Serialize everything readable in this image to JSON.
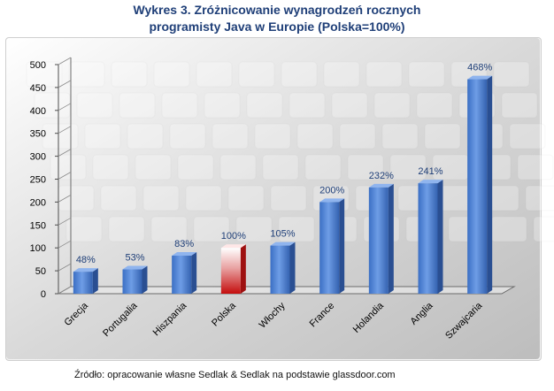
{
  "title_line1": "Wykres 3. Zróżnicowanie wynagrodzeń rocznych",
  "title_line2": "programisty Java w Europie (Polska=100%)",
  "source": "Źródło: opracowanie własne Sedlak & Sedlak na podstawie glassdoor.com",
  "colors": {
    "bar": "#4a7fd4",
    "highlight": "#d81e1e",
    "title": "#1f3f78",
    "label": "#1f3f78"
  },
  "chart_data": {
    "type": "bar",
    "categories": [
      "Grecja",
      "Portugalia",
      "Hiszpania",
      "Polska",
      "Włochy",
      "France",
      "Holandia",
      "Anglia",
      "Szwajcaria"
    ],
    "values": [
      48,
      53,
      83,
      100,
      105,
      200,
      232,
      241,
      468
    ],
    "labels": [
      "48%",
      "53%",
      "83%",
      "100%",
      "105%",
      "200%",
      "232%",
      "241%",
      "468%"
    ],
    "highlight_category": "Polska",
    "ylim": [
      0,
      500
    ],
    "yticks": [
      0,
      50,
      100,
      150,
      200,
      250,
      300,
      350,
      400,
      450,
      500
    ],
    "grid": false,
    "legend": "none",
    "xlabel": "",
    "ylabel": ""
  }
}
